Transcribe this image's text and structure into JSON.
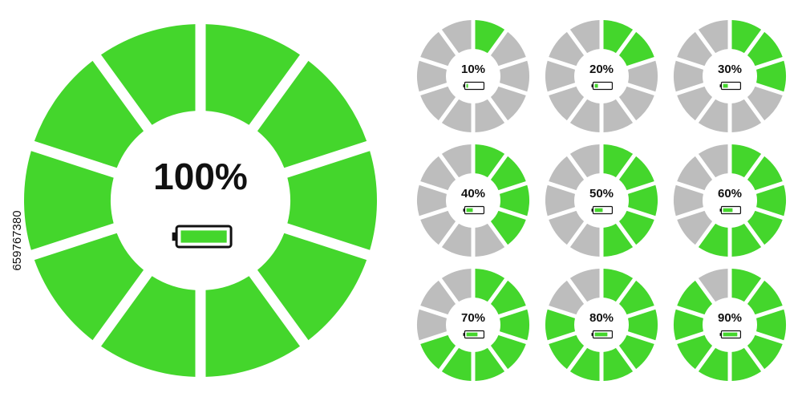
{
  "watermark": "659767380",
  "indicators": [
    {
      "label": "100%",
      "value": 100
    },
    {
      "label": "10%",
      "value": 10
    },
    {
      "label": "20%",
      "value": 20
    },
    {
      "label": "30%",
      "value": 30
    },
    {
      "label": "40%",
      "value": 40
    },
    {
      "label": "50%",
      "value": 50
    },
    {
      "label": "60%",
      "value": 60
    },
    {
      "label": "70%",
      "value": 70
    },
    {
      "label": "80%",
      "value": 80
    },
    {
      "label": "90%",
      "value": 90
    }
  ]
}
